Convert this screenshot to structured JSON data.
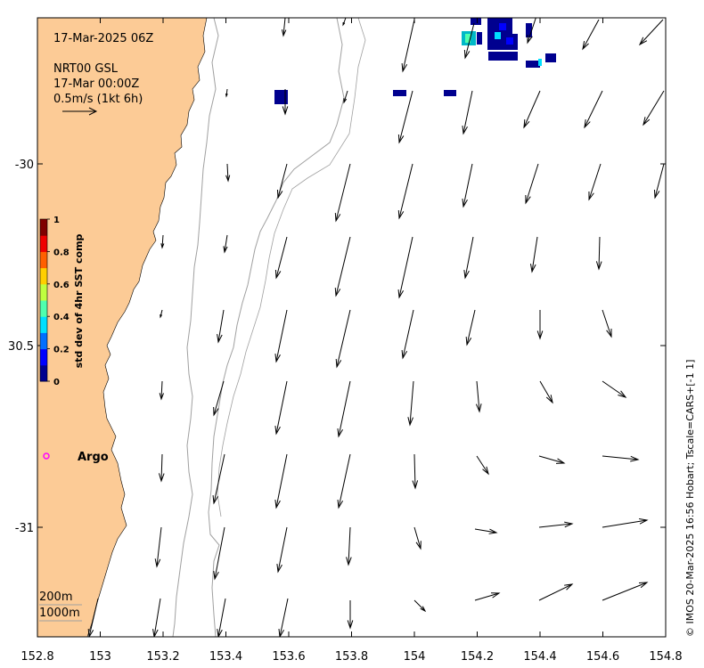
{
  "info": {
    "timestamp": "17-Mar-2025 06Z",
    "product": "NRT00 GSL",
    "product_time": "17-Mar 00:00Z",
    "scale_label": "0.5m/s (1kt 6h)"
  },
  "colorbar": {
    "label": "std dev of 4hr SST comp",
    "ticks": [
      "0",
      "0.2",
      "0.4",
      "0.6",
      "0.8",
      "1"
    ],
    "colors": [
      "#00008f",
      "#0000ff",
      "#006fff",
      "#00dfff",
      "#4fffaf",
      "#bfff3f",
      "#ffcf00",
      "#ff6000",
      "#ef0000",
      "#800000"
    ]
  },
  "marker": {
    "label": "Argo",
    "color": "#ff00ff"
  },
  "depth_legend": {
    "contour_1": "200m",
    "contour_2": "1000m"
  },
  "axes": {
    "x_ticks": [
      "152.8",
      "153",
      "153.2",
      "153.4",
      "153.6",
      "153.8",
      "154",
      "154.2",
      "154.4",
      "154.6",
      "154.8"
    ],
    "y_ticks": [
      "-30",
      "30.5",
      "-31"
    ]
  },
  "credit": "© IMOS 20-Mar-2025 16:56 Hobart; Tscale=CARS+[-1 1]",
  "colors": {
    "land": "#fccb96",
    "contour": "#a0a0a0",
    "arrow": "#000000"
  }
}
